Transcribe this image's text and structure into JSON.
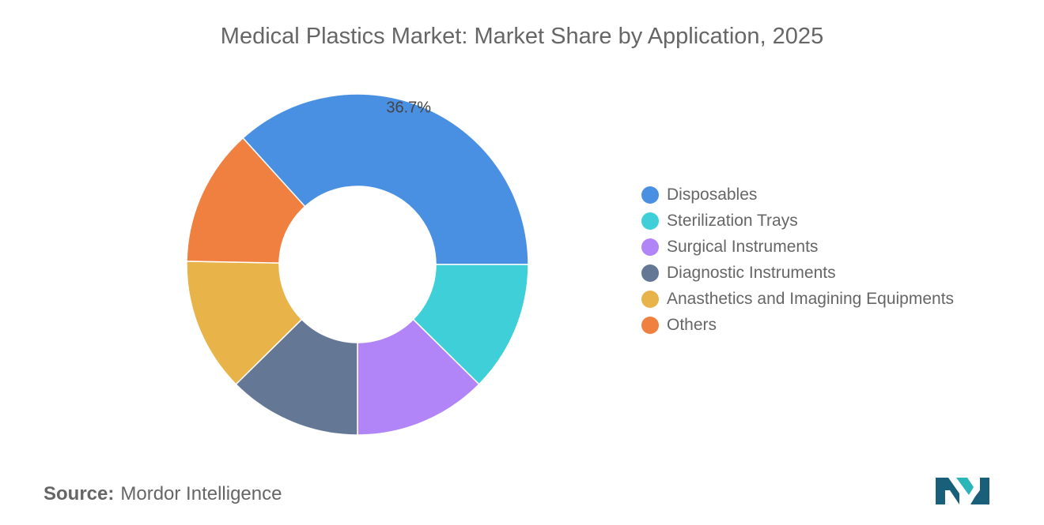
{
  "title": "Medical Plastics Market: Market Share by Application, 2025",
  "chart_data": {
    "type": "pie",
    "categories": [
      "Disposables",
      "Sterilization Trays",
      "Surgical Instruments",
      "Diagnostic Instruments",
      "Anasthetics and Imagining Equipments",
      "Others"
    ],
    "values": [
      36.7,
      12.4,
      12.6,
      12.6,
      12.7,
      13.0
    ],
    "colors": [
      "#4a90e2",
      "#3ecfd9",
      "#b184f7",
      "#647896",
      "#e8b44a",
      "#f08040"
    ],
    "data_labels": [
      "36.7%",
      "",
      "",
      "",
      "",
      ""
    ],
    "legend_position": "right"
  },
  "source": {
    "label": "Source:",
    "value": "Mordor Intelligence"
  },
  "logo": {
    "name": "mordor-intelligence-logo",
    "colors": [
      "#1a5f7a",
      "#2bb5b8"
    ]
  }
}
